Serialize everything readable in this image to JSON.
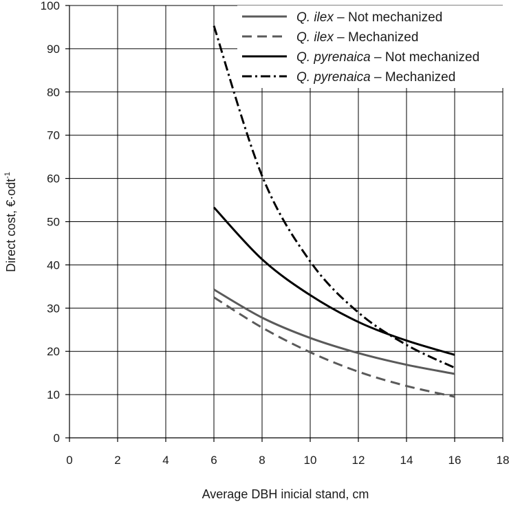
{
  "chart_data": {
    "type": "line",
    "xlabel": "Average DBH inicial stand, cm",
    "ylabel_main": "Direct cost, €·odt",
    "ylabel_sup": "-1",
    "xlim": [
      0,
      18
    ],
    "ylim": [
      0,
      100
    ],
    "x_ticks": [
      "0",
      "2",
      "4",
      "6",
      "8",
      "10",
      "12",
      "14",
      "16",
      "18"
    ],
    "y_ticks": [
      "0",
      "10",
      "20",
      "30",
      "40",
      "50",
      "60",
      "70",
      "80",
      "90",
      "100"
    ],
    "grid": true,
    "legend_position": "top-right",
    "x": [
      6,
      8,
      10,
      12,
      14,
      16
    ],
    "series": [
      {
        "species": "Q. ilex",
        "suffix": " – Not mechanized",
        "values": [
          34.3,
          27.8,
          23.1,
          19.6,
          16.9,
          14.8
        ],
        "color": "#5a5a5a",
        "dash": "none"
      },
      {
        "species": "Q. ilex",
        "suffix": " – Mechanized",
        "values": [
          32.5,
          25.5,
          19.8,
          15.3,
          12.0,
          9.5
        ],
        "color": "#5a5a5a",
        "dash": "14,8"
      },
      {
        "species": "Q. pyrenaica",
        "suffix": " – Not mechanized",
        "values": [
          53.3,
          41.3,
          33.0,
          26.8,
          22.5,
          19.2
        ],
        "color": "#000000",
        "dash": "none"
      },
      {
        "species": "Q. pyrenaica",
        "suffix": " – Mechanized",
        "values": [
          95.3,
          60.6,
          40.8,
          29.0,
          21.5,
          16.2
        ],
        "color": "#000000",
        "dash": "14,5,3,5"
      }
    ]
  }
}
